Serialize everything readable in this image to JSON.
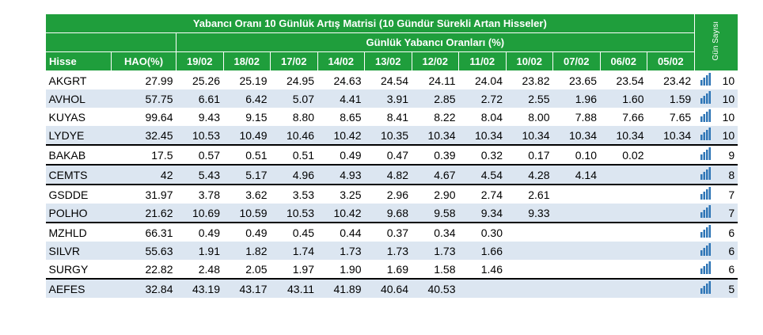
{
  "header": {
    "title": "Yabancı Oranı 10 Günlük Artış Matrisi  (10 Gündür Sürekli Artan Hisseler)",
    "subtitle": "Günlük Yabancı Oranları (%)",
    "day_count_label": "Gün Sayısı",
    "stock_label": "Hisse",
    "hao_label": "HAO(%)",
    "dates": [
      "19/02",
      "18/02",
      "17/02",
      "14/02",
      "13/02",
      "12/02",
      "11/02",
      "10/02",
      "07/02",
      "06/02",
      "05/02"
    ]
  },
  "table": {
    "rows": [
      {
        "stock": "AKGRT",
        "hao": "27.99",
        "values": [
          "25.26",
          "25.19",
          "24.95",
          "24.63",
          "24.54",
          "24.11",
          "24.04",
          "23.82",
          "23.65",
          "23.54",
          "23.42"
        ],
        "days": 10
      },
      {
        "stock": "AVHOL",
        "hao": "57.75",
        "values": [
          "6.61",
          "6.42",
          "5.07",
          "4.41",
          "3.91",
          "2.85",
          "2.72",
          "2.55",
          "1.96",
          "1.60",
          "1.59"
        ],
        "days": 10
      },
      {
        "stock": "KUYAS",
        "hao": "99.64",
        "values": [
          "9.43",
          "9.15",
          "8.80",
          "8.65",
          "8.41",
          "8.22",
          "8.04",
          "8.00",
          "7.88",
          "7.66",
          "7.65"
        ],
        "days": 10
      },
      {
        "stock": "LYDYE",
        "hao": "32.45",
        "values": [
          "10.53",
          "10.49",
          "10.46",
          "10.42",
          "10.35",
          "10.34",
          "10.34",
          "10.34",
          "10.34",
          "10.34",
          "10.34"
        ],
        "days": 10
      },
      {
        "stock": "BAKAB",
        "hao": "17.5",
        "values": [
          "0.57",
          "0.51",
          "0.51",
          "0.49",
          "0.47",
          "0.39",
          "0.32",
          "0.17",
          "0.10",
          "0.02"
        ],
        "days": 9
      },
      {
        "stock": "CEMTS",
        "hao": "42",
        "values": [
          "5.43",
          "5.17",
          "4.96",
          "4.93",
          "4.82",
          "4.67",
          "4.54",
          "4.28",
          "4.14"
        ],
        "days": 8
      },
      {
        "stock": "GSDDE",
        "hao": "31.97",
        "values": [
          "3.78",
          "3.62",
          "3.53",
          "3.25",
          "2.96",
          "2.90",
          "2.74",
          "2.61"
        ],
        "days": 7
      },
      {
        "stock": "POLHO",
        "hao": "21.62",
        "values": [
          "10.69",
          "10.59",
          "10.53",
          "10.42",
          "9.68",
          "9.58",
          "9.34",
          "9.33"
        ],
        "days": 7
      },
      {
        "stock": "MZHLD",
        "hao": "66.31",
        "values": [
          "0.49",
          "0.49",
          "0.45",
          "0.44",
          "0.37",
          "0.34",
          "0.30"
        ],
        "days": 6
      },
      {
        "stock": "SILVR",
        "hao": "55.63",
        "values": [
          "1.91",
          "1.82",
          "1.74",
          "1.73",
          "1.73",
          "1.73",
          "1.66"
        ],
        "days": 6
      },
      {
        "stock": "SURGY",
        "hao": "22.82",
        "values": [
          "2.48",
          "2.05",
          "1.97",
          "1.90",
          "1.69",
          "1.58",
          "1.46"
        ],
        "days": 6
      },
      {
        "stock": "AEFES",
        "hao": "32.84",
        "values": [
          "43.19",
          "43.17",
          "43.11",
          "41.89",
          "40.64",
          "40.53"
        ],
        "days": 5
      }
    ]
  }
}
